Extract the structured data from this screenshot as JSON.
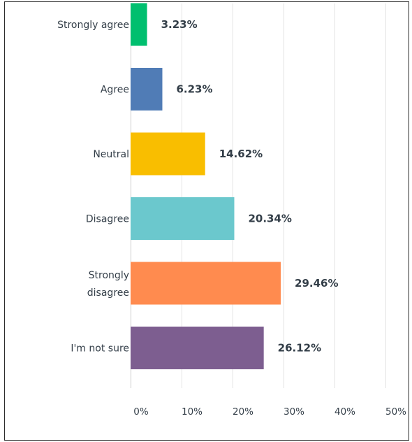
{
  "chart_data": {
    "type": "bar",
    "orientation": "horizontal",
    "categories": [
      "Strongly agree",
      "Agree",
      "Neutral",
      "Disagree",
      "Strongly disagree",
      "I'm not sure"
    ],
    "category_lines": [
      [
        "Strongly agree"
      ],
      [
        "Agree"
      ],
      [
        "Neutral"
      ],
      [
        "Disagree"
      ],
      [
        "Strongly",
        "disagree"
      ],
      [
        "I'm not sure"
      ]
    ],
    "values": [
      3.23,
      6.23,
      14.62,
      20.34,
      29.46,
      26.12
    ],
    "value_labels": [
      "3.23%",
      "6.23%",
      "14.62%",
      "20.34%",
      "29.46%",
      "26.12%"
    ],
    "colors": [
      "#00bf6f",
      "#507cb6",
      "#f9be00",
      "#6bc8cd",
      "#ff8b4f",
      "#7d5e90"
    ],
    "xlim": [
      0,
      55
    ],
    "x_ticks": [
      0,
      10,
      20,
      30,
      40,
      50
    ],
    "x_tick_labels": [
      "0%",
      "10%",
      "20%",
      "30%",
      "40%",
      "50%"
    ],
    "grid": true,
    "title": "",
    "xlabel": "",
    "ylabel": ""
  }
}
